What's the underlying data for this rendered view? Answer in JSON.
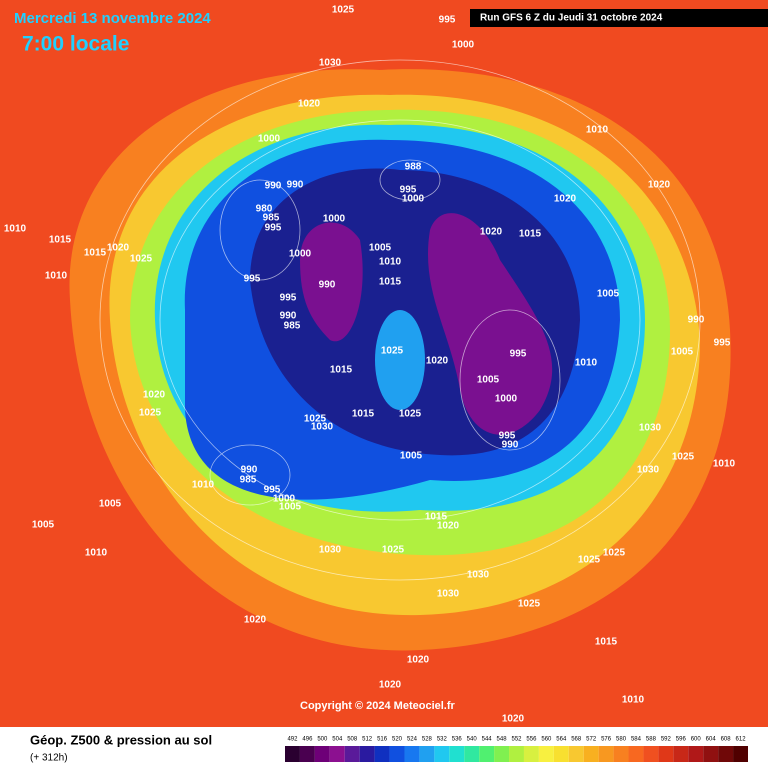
{
  "header": {
    "date": "Mercredi 13 novembre 2024",
    "time": "7:00 locale",
    "run": "Run GFS 6 Z du Jeudi 31 octobre 2024"
  },
  "copyright": "Copyright © 2024 Meteociel.fr",
  "footer": {
    "title": "Géop. Z500 & pression au sol",
    "lead": "(+ 312h)"
  },
  "legend": {
    "labels": [
      492,
      496,
      500,
      504,
      508,
      512,
      516,
      520,
      524,
      528,
      532,
      536,
      540,
      544,
      548,
      552,
      556,
      560,
      564,
      568,
      572,
      576,
      580,
      584,
      588,
      592,
      596,
      600,
      604,
      608,
      612
    ],
    "colors": [
      "#2a0030",
      "#4a0050",
      "#6e0078",
      "#8c1090",
      "#5a1a9a",
      "#2a1aa0",
      "#1030c0",
      "#1050e0",
      "#1878f0",
      "#20a0f0",
      "#20c8f0",
      "#20e0d0",
      "#30e8a0",
      "#50f070",
      "#80f050",
      "#b0f040",
      "#d8f040",
      "#f8f040",
      "#f8e030",
      "#f8c830",
      "#f8b020",
      "#f89820",
      "#f88020",
      "#f86820",
      "#f05020",
      "#e03818",
      "#c82818",
      "#b01818",
      "#901010",
      "#700808",
      "#500000"
    ]
  },
  "isobars": [
    "1025",
    "995",
    "1000",
    "1030",
    "1020",
    "1000",
    "990",
    "990",
    "980",
    "985",
    "995",
    "988",
    "995",
    "1000",
    "1000",
    "1005",
    "1010",
    "990",
    "1000",
    "995",
    "995",
    "990",
    "985",
    "1015",
    "1025",
    "1020",
    "1015",
    "1015",
    "1025",
    "1005",
    "1025",
    "1030",
    "990",
    "985",
    "995",
    "1000",
    "1005",
    "1010",
    "1020",
    "1015",
    "1020",
    "1010",
    "1020",
    "1005",
    "1010",
    "995",
    "1005",
    "1000",
    "995",
    "990",
    "1030",
    "1025",
    "1010",
    "1030",
    "990",
    "1005",
    "995",
    "1015",
    "1015",
    "1020",
    "1025",
    "1010",
    "1010",
    "1020",
    "1025",
    "1005",
    "1005",
    "1010",
    "1030",
    "1025",
    "1015",
    "1020",
    "1030",
    "1030",
    "1025",
    "1025",
    "1025",
    "1020",
    "1020",
    "1020",
    "1015",
    "1010",
    "1020"
  ]
}
